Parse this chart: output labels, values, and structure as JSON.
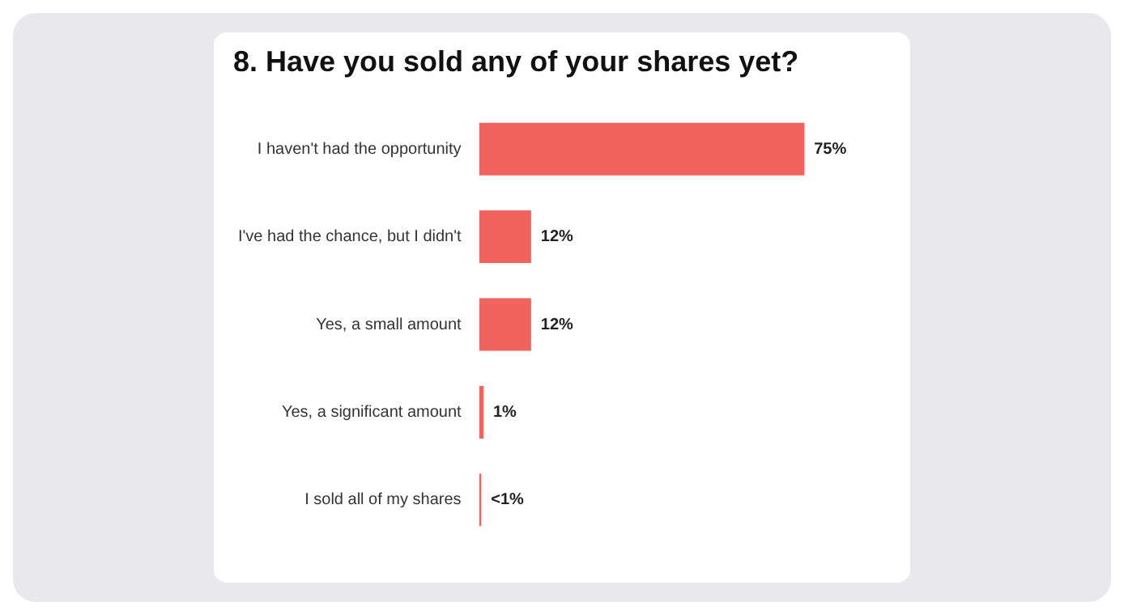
{
  "chart_data": {
    "type": "bar",
    "title": "8. Have you sold any of your shares yet?",
    "orientation": "horizontal",
    "categories": [
      "I haven't had the opportunity",
      "I've had the chance, but I didn't",
      "Yes, a small amount",
      "Yes, a significant amount",
      "I sold all of my shares"
    ],
    "values": [
      75,
      12,
      12,
      1,
      0.5
    ],
    "color": "#f2635d",
    "value_labels": [
      "75%",
      "12%",
      "12%",
      "1%",
      "<1%"
    ]
  }
}
